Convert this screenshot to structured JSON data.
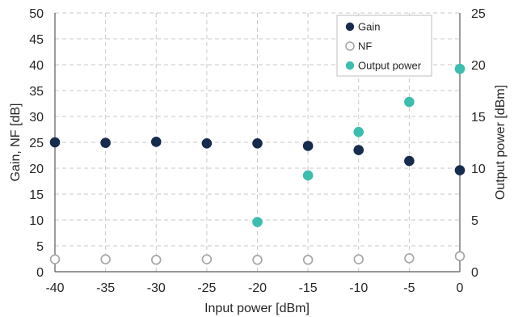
{
  "chart_data": {
    "type": "scatter",
    "x": [
      -40,
      -35,
      -30,
      -25,
      -20,
      -15,
      -10,
      -5,
      0
    ],
    "xlabel": "Input power [dBm]",
    "ylabel_left": "Gain, NF [dB]",
    "ylabel_right": "Output power [dBm]",
    "xlim": [
      -40,
      0
    ],
    "ylim_left": [
      0,
      50
    ],
    "ylim_right": [
      0,
      25
    ],
    "x_ticks": [
      -40,
      -35,
      -30,
      -25,
      -20,
      -15,
      -10,
      -5,
      0
    ],
    "y_left_ticks": [
      0,
      5,
      10,
      15,
      20,
      25,
      30,
      35,
      40,
      45,
      50
    ],
    "y_right_ticks": [
      0,
      5,
      10,
      15,
      20,
      25
    ],
    "grid": true,
    "legend_position": "top-right",
    "series": [
      {
        "name": "Gain",
        "axis": "left",
        "marker": "filled",
        "color": "#172b4d",
        "x": [
          -40,
          -35,
          -30,
          -25,
          -20,
          -15,
          -10,
          -5,
          0
        ],
        "values": [
          25.0,
          24.9,
          25.1,
          24.8,
          24.8,
          24.3,
          23.5,
          21.4,
          19.6
        ]
      },
      {
        "name": "NF",
        "axis": "left",
        "marker": "hollow",
        "color": "#a6a6a6",
        "x": [
          -40,
          -35,
          -30,
          -25,
          -20,
          -15,
          -10,
          -5,
          0
        ],
        "values": [
          2.4,
          2.4,
          2.3,
          2.4,
          2.3,
          2.3,
          2.4,
          2.6,
          3.0
        ]
      },
      {
        "name": "Output power",
        "axis": "right",
        "marker": "filled",
        "color": "#3dbdae",
        "x": [
          -20,
          -15,
          -10,
          -5,
          0
        ],
        "values": [
          4.8,
          9.3,
          13.5,
          16.4,
          19.6
        ]
      }
    ]
  }
}
